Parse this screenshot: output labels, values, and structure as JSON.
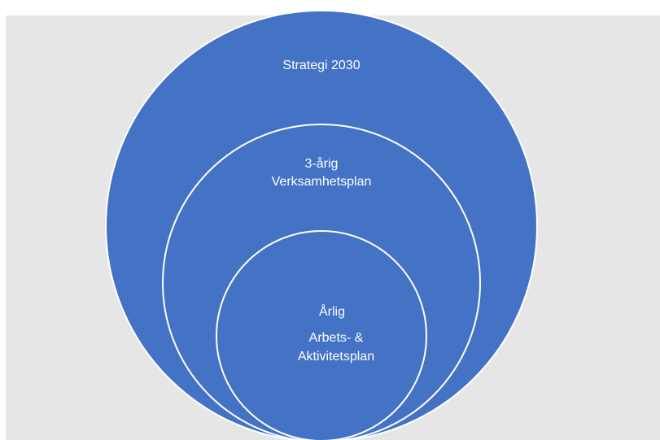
{
  "diagram": {
    "colors": {
      "background": "#e6e6e6",
      "circle_fill": "#4472c4",
      "circle_stroke": "#ffffff",
      "text": "#ffffff"
    },
    "outer_circle": {
      "label": "Strategi 2030"
    },
    "middle_circle": {
      "label_line1": "3-årig",
      "label_line2": "Verksamhetsplan"
    },
    "inner_circle": {
      "label_line1": "Årlig",
      "label_line2": "Arbets- &",
      "label_line3": "Aktivitetsplan"
    }
  }
}
